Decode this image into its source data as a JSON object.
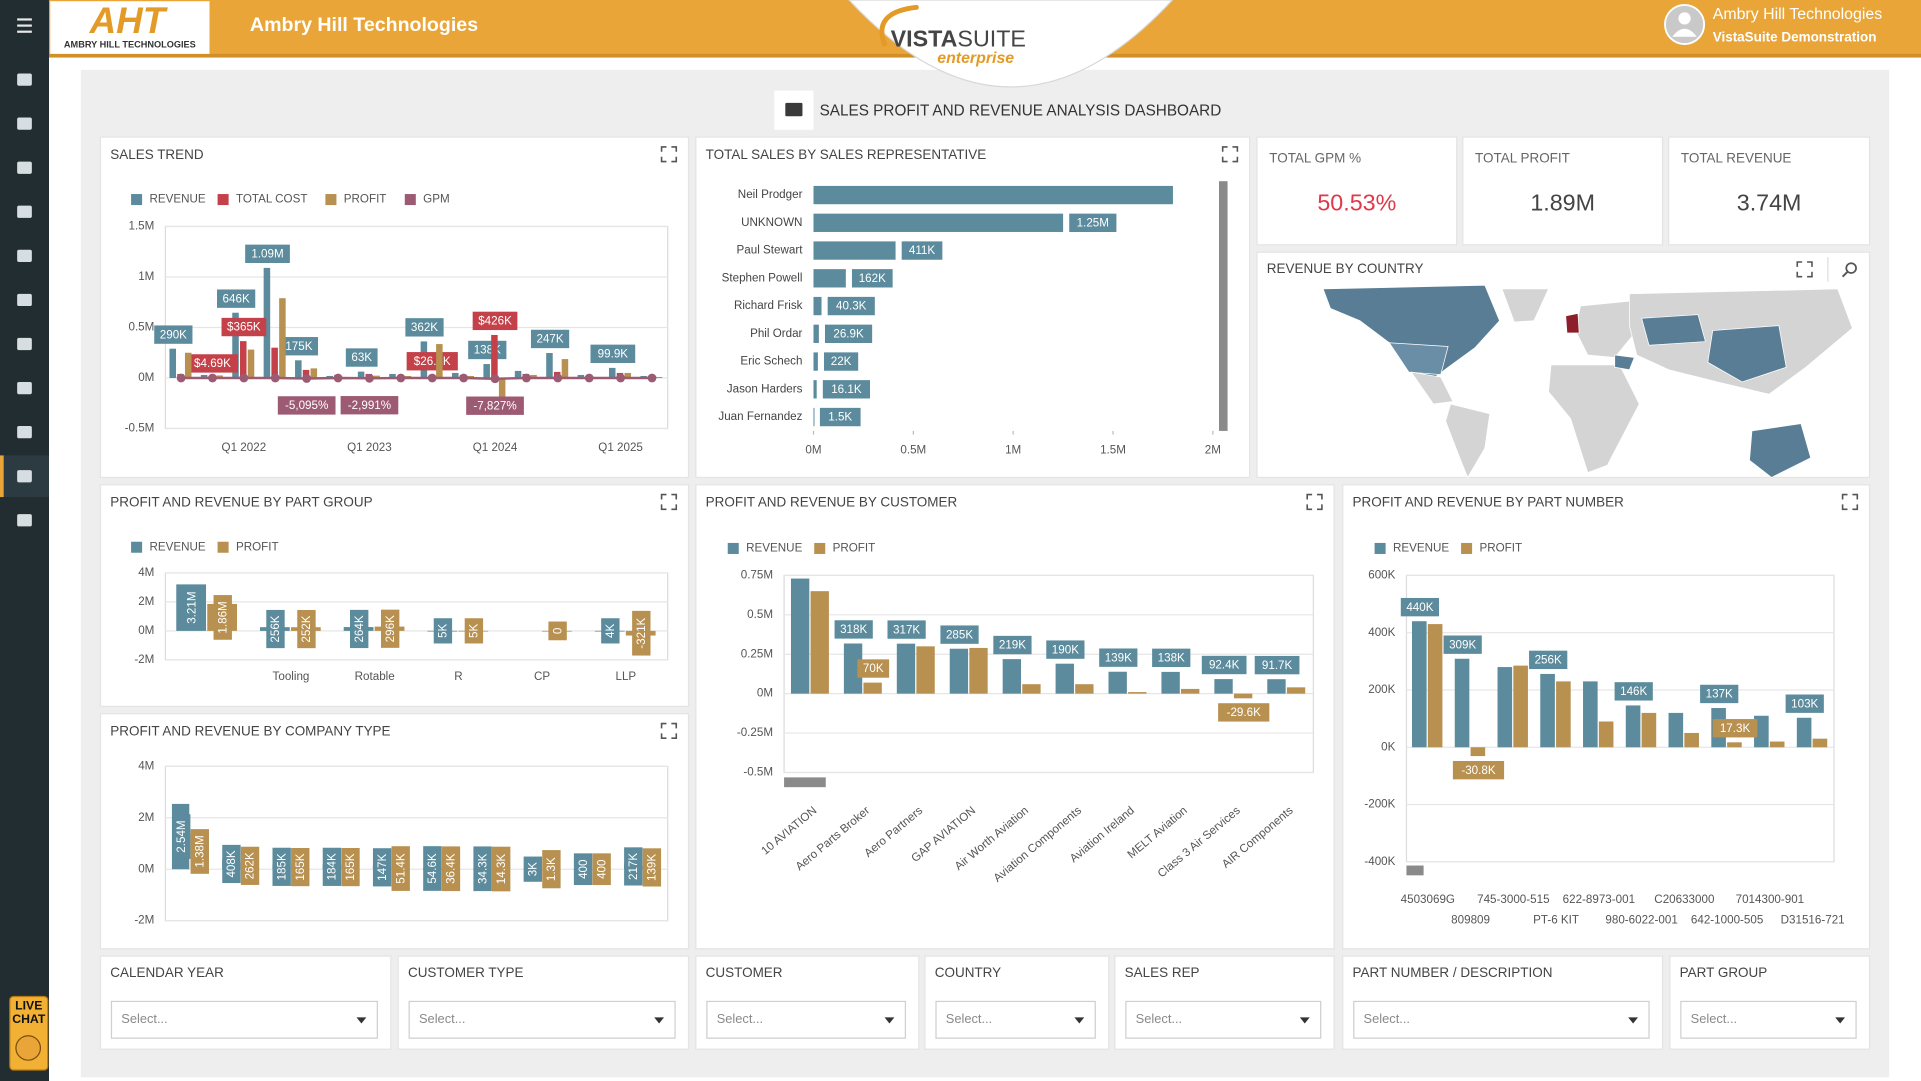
{
  "header": {
    "logo_text": "AHT",
    "logo_subtext": "AMBRY HILL TECHNOLOGIES",
    "company": "Ambry Hill Technologies",
    "product_bold": "VISTA",
    "product_light": "SUITE",
    "product_edition": "enterprise",
    "user_name": "Ambry Hill Technologies",
    "user_subtitle": "VistaSuite Demonstration"
  },
  "dashboard_title": "SALES PROFIT AND REVENUE ANALYSIS DASHBOARD",
  "kpis": [
    {
      "title": "TOTAL GPM %",
      "value": "50.53%"
    },
    {
      "title": "TOTAL PROFIT",
      "value": "1.89M"
    },
    {
      "title": "TOTAL REVENUE",
      "value": "3.74M"
    }
  ],
  "map": {
    "title": "REVENUE BY COUNTRY"
  },
  "filters": [
    {
      "label": "CALENDAR YEAR",
      "placeholder": "Select..."
    },
    {
      "label": "CUSTOMER TYPE",
      "placeholder": "Select..."
    },
    {
      "label": "CUSTOMER",
      "placeholder": "Select..."
    },
    {
      "label": "COUNTRY",
      "placeholder": "Select..."
    },
    {
      "label": "SALES REP",
      "placeholder": "Select..."
    },
    {
      "label": "PART NUMBER / DESCRIPTION",
      "placeholder": "Select..."
    },
    {
      "label": "PART GROUP",
      "placeholder": "Select..."
    }
  ],
  "live_chat": [
    "LIVE",
    "CHAT"
  ],
  "chart_data": [
    {
      "type": "combo",
      "title": "SALES TREND",
      "categories": [
        null,
        null,
        "Q1 2022",
        null,
        null,
        null,
        "Q1 2023",
        null,
        null,
        null,
        "Q1 2024",
        null,
        null,
        null,
        "Q1 2025",
        null
      ],
      "series": [
        {
          "name": "REVENUE",
          "type": "bar",
          "color": "#5b8b9c",
          "values": [
            290000,
            30000,
            646000,
            1090000,
            175000,
            20000,
            63000,
            40000,
            362000,
            50000,
            138000,
            70000,
            247000,
            30000,
            99900,
            20000
          ],
          "value_labels": [
            "290K",
            null,
            "646K",
            "1.09M",
            "175K",
            null,
            "63K",
            null,
            "362K",
            null,
            "138K",
            null,
            "247K",
            null,
            "99.9K",
            null
          ]
        },
        {
          "name": "TOTAL COST",
          "type": "bar",
          "color": "#c4414a",
          "values": [
            40000,
            4690,
            365000,
            300000,
            80000,
            30000,
            40000,
            20000,
            26300,
            30000,
            426000,
            40000,
            60000,
            20000,
            50000,
            10000
          ],
          "value_labels": [
            null,
            "$4.69K",
            "$365K",
            null,
            null,
            null,
            null,
            null,
            "$26.3K",
            null,
            "$426K",
            null,
            null,
            null,
            null,
            null
          ]
        },
        {
          "name": "PROFIT",
          "type": "bar",
          "color": "#b8904f",
          "values": [
            250000,
            25000,
            281000,
            790000,
            95000,
            -10000,
            23000,
            20000,
            335700,
            20000,
            -288000,
            30000,
            187000,
            10000,
            49900,
            10000
          ]
        },
        {
          "name": "GPM",
          "type": "line",
          "color": "#9c5a73",
          "values": [
            86,
            83,
            43,
            72,
            -5095,
            -50,
            -2991,
            50,
            93,
            40,
            -7827,
            43,
            76,
            33,
            50,
            50
          ],
          "value_labels": [
            null,
            null,
            null,
            null,
            "-5,095%",
            null,
            "-2,991%",
            null,
            null,
            null,
            "-7,827%",
            null,
            null,
            null,
            null,
            null
          ]
        }
      ],
      "ylim": [
        -500000,
        1500000
      ],
      "yticks": [
        {
          "value": -500000,
          "label": "-0.5M"
        },
        {
          "value": 0,
          "label": "0M"
        },
        {
          "value": 500000,
          "label": "0.5M"
        },
        {
          "value": 1000000,
          "label": "1M"
        },
        {
          "value": 1500000,
          "label": "1.5M"
        }
      ],
      "grid": true,
      "legend": "top-left"
    },
    {
      "type": "hbar",
      "title": "TOTAL SALES BY SALES REPRESENTATIVE",
      "categories": [
        "Neil Prodger",
        "UNKNOWN",
        "Paul Stewart",
        "Stephen Powell",
        "Richard Frisk",
        "Phil Ordar",
        "Eric Schech",
        "Jason Harders",
        "Juan Fernandez"
      ],
      "values": [
        1800000,
        1250000,
        411000,
        162000,
        40300,
        26900,
        22000,
        16100,
        1500
      ],
      "value_labels": [
        null,
        "1.25M",
        "411K",
        "162K",
        "40.3K",
        "26.9K",
        "22K",
        "16.1K",
        "1.5K"
      ],
      "color": "#5b8b9c",
      "xlim": [
        0,
        2000000
      ],
      "xticks": [
        {
          "value": 0,
          "label": "0M"
        },
        {
          "value": 500000,
          "label": "0.5M"
        },
        {
          "value": 1000000,
          "label": "1M"
        },
        {
          "value": 1500000,
          "label": "1.5M"
        },
        {
          "value": 2000000,
          "label": "2M"
        }
      ],
      "grid": false
    },
    {
      "type": "bar",
      "title": "PROFIT AND REVENUE BY PART GROUP",
      "categories": [
        null,
        "Tooling",
        "Rotable",
        "R",
        "CP",
        "LLP"
      ],
      "series": [
        {
          "name": "REVENUE",
          "type": "bar",
          "color": "#5b8b9c",
          "values": [
            3210000,
            256000,
            264000,
            5000,
            null,
            4000
          ],
          "value_labels": [
            "3.21M",
            "256K",
            "264K",
            "5K",
            null,
            "4K"
          ]
        },
        {
          "name": "PROFIT",
          "type": "bar",
          "color": "#b8904f",
          "values": [
            1860000,
            252000,
            296000,
            5000,
            0,
            -321000
          ],
          "value_labels": [
            "1.86M",
            "252K",
            "296K",
            "5K",
            "0",
            "-321K"
          ]
        }
      ],
      "ylim": [
        -2000000,
        4000000
      ],
      "yticks": [
        {
          "value": -2000000,
          "label": "-2M"
        },
        {
          "value": 0,
          "label": "0M"
        },
        {
          "value": 2000000,
          "label": "2M"
        },
        {
          "value": 4000000,
          "label": "4M"
        }
      ],
      "grid": true,
      "legend": "top-left"
    },
    {
      "type": "bar",
      "title": "PROFIT AND REVENUE BY COMPANY TYPE",
      "categories": [
        null,
        null,
        null,
        null,
        null,
        null,
        null,
        null,
        null,
        null
      ],
      "series": [
        {
          "name": "REVENUE",
          "type": "bar",
          "color": "#5b8b9c",
          "values": [
            2540000,
            408000,
            185000,
            184000,
            147000,
            54600,
            34300,
            3000,
            400,
            217000
          ],
          "value_labels": [
            "2.54M",
            "408K",
            "185K",
            "184K",
            "147K",
            "54.6K",
            "34.3K",
            "3K",
            "400",
            "217K"
          ]
        },
        {
          "name": "PROFIT",
          "type": "bar",
          "color": "#b8904f",
          "values": [
            1380000,
            262000,
            165000,
            165000,
            51400,
            36400,
            14300,
            1300,
            400,
            139000
          ],
          "value_labels": [
            "1.38M",
            "262K",
            "165K",
            "165K",
            "51.4K",
            "36.4K",
            "14.3K",
            "1.3K",
            "400",
            "139K"
          ]
        }
      ],
      "ylim": [
        -2000000,
        4000000
      ],
      "yticks": [
        {
          "value": -2000000,
          "label": "-2M"
        },
        {
          "value": 0,
          "label": "0M"
        },
        {
          "value": 2000000,
          "label": "2M"
        },
        {
          "value": 4000000,
          "label": "4M"
        }
      ],
      "grid": true
    },
    {
      "type": "bar",
      "title": "PROFIT AND REVENUE BY CUSTOMER",
      "categories": [
        "10 AVIATION",
        "Aero Parts Broker",
        "Aero Partners",
        "GAP AVIATION",
        "Air Worth Aviation",
        "Aviation Components",
        "Aviation Ireland",
        "MELT Aviation",
        "Class 3 Air Services",
        "AIR Components"
      ],
      "series": [
        {
          "name": "REVENUE",
          "type": "bar",
          "color": "#5b8b9c",
          "values": [
            730000,
            318000,
            317000,
            285000,
            219000,
            190000,
            139000,
            138000,
            92400,
            91700
          ],
          "value_labels": [
            null,
            "318K",
            "317K",
            "285K",
            "219K",
            "190K",
            "139K",
            "138K",
            "92.4K",
            "91.7K"
          ]
        },
        {
          "name": "PROFIT",
          "type": "bar",
          "color": "#b8904f",
          "values": [
            650000,
            70000,
            300000,
            290000,
            60000,
            60000,
            10000,
            30000,
            -29600,
            40000
          ],
          "value_labels": [
            null,
            "70K",
            null,
            null,
            null,
            null,
            null,
            null,
            "-29.6K",
            null
          ]
        }
      ],
      "ylim": [
        -500000,
        750000
      ],
      "yticks": [
        {
          "value": -500000,
          "label": "-0.5M"
        },
        {
          "value": -250000,
          "label": "-0.25M"
        },
        {
          "value": 0,
          "label": "0M"
        },
        {
          "value": 250000,
          "label": "0.25M"
        },
        {
          "value": 500000,
          "label": "0.5M"
        },
        {
          "value": 750000,
          "label": "0.75M"
        }
      ],
      "grid": true,
      "legend": "top-left"
    },
    {
      "type": "bar",
      "title": "PROFIT AND REVENUE BY PART NUMBER",
      "categories": [
        "4503069G",
        "809809",
        "745-3000-515",
        "PT-6 KIT",
        "622-8973-001",
        "980-6022-001",
        "C20633000",
        "642-1000-505",
        "7014300-901",
        "D31516-721"
      ],
      "series": [
        {
          "name": "REVENUE",
          "type": "bar",
          "color": "#5b8b9c",
          "values": [
            440000,
            309000,
            280000,
            256000,
            230000,
            146000,
            120000,
            137000,
            110000,
            103000
          ],
          "value_labels": [
            "440K",
            "309K",
            null,
            "256K",
            null,
            "146K",
            null,
            "137K",
            null,
            "103K"
          ]
        },
        {
          "name": "PROFIT",
          "type": "bar",
          "color": "#b8904f",
          "values": [
            430000,
            -30800,
            285000,
            230000,
            90000,
            120000,
            50000,
            17300,
            20000,
            30000
          ],
          "value_labels": [
            null,
            "-30.8K",
            null,
            null,
            null,
            null,
            null,
            "17.3K",
            null,
            null
          ]
        }
      ],
      "ylim": [
        -400000,
        600000
      ],
      "yticks": [
        {
          "value": -400000,
          "label": "-400K"
        },
        {
          "value": -200000,
          "label": "-200K"
        },
        {
          "value": 0,
          "label": "0K"
        },
        {
          "value": 200000,
          "label": "200K"
        },
        {
          "value": 400000,
          "label": "400K"
        },
        {
          "value": 600000,
          "label": "600K"
        }
      ],
      "grid": true,
      "legend": "top-left"
    }
  ]
}
